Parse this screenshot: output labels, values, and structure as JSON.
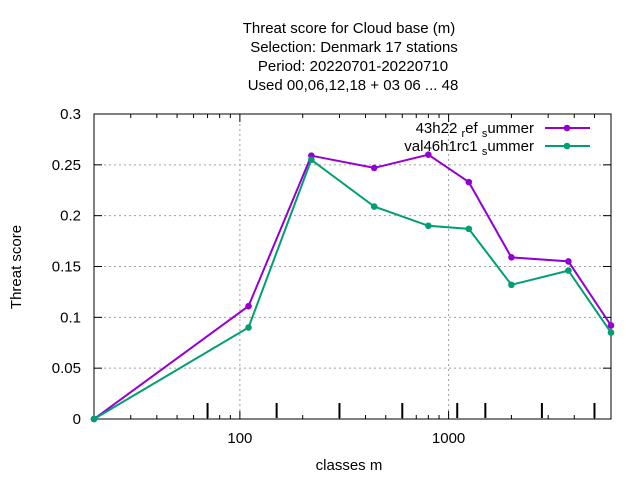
{
  "chart_data": {
    "type": "line",
    "title_lines": [
      "Threat score  for Cloud base (m)",
      "Selection: Denmark     17 stations",
      "Period: 20220701-20220710",
      "Used  00,06,12,18  + 03 06 ... 48"
    ],
    "xlabel": "classes m",
    "ylabel": "Threat score",
    "x_scale": "log",
    "xlim": [
      20,
      6000
    ],
    "ylim": [
      0,
      0.3
    ],
    "x_ticks": [
      100,
      1000
    ],
    "x_tick_labels": [
      "100",
      "1000"
    ],
    "y_ticks": [
      0,
      0.05,
      0.1,
      0.15,
      0.2,
      0.25,
      0.3
    ],
    "y_tick_labels": [
      "0",
      "0.05",
      "0.1",
      "0.15",
      "0.2",
      "0.25",
      "0.3"
    ],
    "grid": true,
    "legend_position": "top-right",
    "x": [
      20,
      110,
      220,
      440,
      800,
      1250,
      2000,
      3750,
      6000
    ],
    "series": [
      {
        "name": "43h22_ref_summer",
        "legend_label": {
          "parts": [
            "43h22 ",
            "r",
            "ef ",
            "s",
            "ummer"
          ]
        },
        "color": "#9400d3",
        "values": [
          0,
          0.111,
          0.259,
          0.247,
          0.26,
          0.233,
          0.159,
          0.155,
          0.092
        ]
      },
      {
        "name": "val46h1rc1_summer",
        "legend_label": {
          "parts": [
            "val46h1rc1 ",
            "s",
            "ummer"
          ]
        },
        "color": "#009e73",
        "values": [
          0,
          0.09,
          0.255,
          0.209,
          0.19,
          0.187,
          0.132,
          0.146,
          0.085
        ]
      }
    ],
    "bottom_marker_x": [
      70,
      150,
      300,
      600,
      1100,
      1500,
      2800,
      5000
    ]
  }
}
